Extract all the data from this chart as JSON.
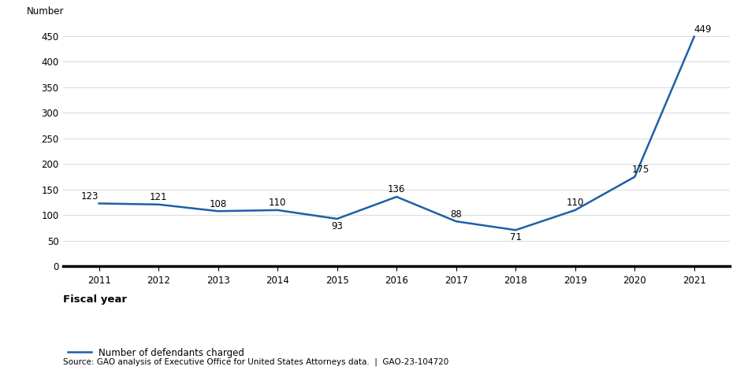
{
  "years": [
    2011,
    2012,
    2013,
    2014,
    2015,
    2016,
    2017,
    2018,
    2019,
    2020,
    2021
  ],
  "values": [
    123,
    121,
    108,
    110,
    93,
    136,
    88,
    71,
    110,
    175,
    449
  ],
  "line_color": "#1F5FA6",
  "line_width": 1.8,
  "ylabel": "Number",
  "xlabel": "Fiscal year",
  "ylim": [
    0,
    470
  ],
  "yticks": [
    0,
    50,
    100,
    150,
    200,
    250,
    300,
    350,
    400,
    450
  ],
  "xticks": [
    2011,
    2012,
    2013,
    2014,
    2015,
    2016,
    2017,
    2018,
    2019,
    2020,
    2021
  ],
  "legend_label": "Number of defendants charged",
  "source_text": "Source: GAO analysis of Executive Office for United States Attorneys data.  |  GAO-23-104720",
  "label_fontsize": 8.5,
  "axis_fontsize": 8.5,
  "ylabel_fontsize": 8.5,
  "xlabel_fontsize": 9.5,
  "source_fontsize": 7.5,
  "background_color": "#ffffff",
  "annotation_va": {
    "2011": "bottom",
    "2012": "bottom",
    "2013": "bottom",
    "2014": "bottom",
    "2015": "top",
    "2016": "bottom",
    "2017": "bottom",
    "2018": "top",
    "2019": "bottom",
    "2020": "bottom",
    "2021": "bottom"
  },
  "annotation_dy": {
    "2011": 4,
    "2012": 4,
    "2013": 4,
    "2014": 4,
    "2015": -4,
    "2016": 4,
    "2017": 4,
    "2018": -4,
    "2019": 4,
    "2020": 4,
    "2021": 4
  },
  "annotation_dx": {
    "2011": -0.15,
    "2012": 0,
    "2013": 0,
    "2014": 0,
    "2015": 0,
    "2016": 0,
    "2017": 0,
    "2018": 0,
    "2019": 0,
    "2020": 0.1,
    "2021": 0.15
  }
}
